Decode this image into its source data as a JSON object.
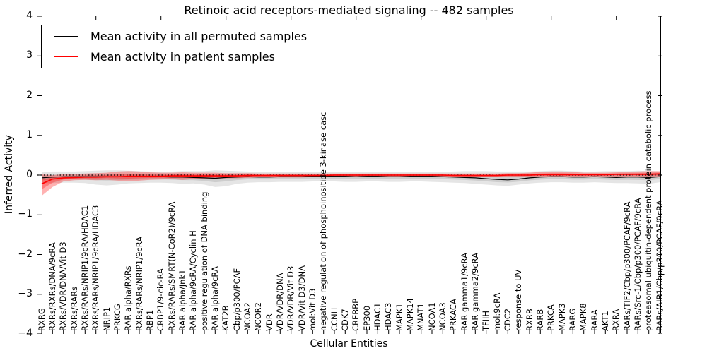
{
  "title": "Retinoic acid receptors-mediated signaling -- 482 samples",
  "chart_data": {
    "type": "line",
    "title": "Retinoic acid receptors-mediated signaling -- 482 samples",
    "xlabel": "Cellular Entities",
    "ylabel": "Inferred Activity",
    "ylim": [
      -4,
      4
    ],
    "yticks": [
      4,
      3,
      2,
      1,
      0,
      -1,
      -2,
      -3,
      -4
    ],
    "zero_line": true,
    "grid": false,
    "legend_position": "upper left",
    "categories": [
      "RXRG",
      "RXRs/RXRs/DNA/9cRA",
      "RXRs/VDR/DNA/Vit D3",
      "RXRs/RARs",
      "RXRs/RARs/NRIP1/9cRA/HDAC1",
      "RXRs/RARs/NRIP1/9cRA/HDAC3",
      "NRIP1",
      "PRKCG",
      "RAR alpha/RXRs",
      "RXRs/RARs/NRIP1/9cRA",
      "RBP1",
      "CRBP1/9-cic-RA",
      "RXRs/RARs/SMRT(N-CoR2)/9cRA",
      "RAR alpha/Jnk1",
      "RAR alpha/9cRA/Cyclin H",
      "positive regulation of DNA binding",
      "RAR alpha/9cRA",
      "KAT2B",
      "Cbp/p300/PCAF",
      "NCOA2",
      "NCOR2",
      "VDR",
      "VDR/VDR/DNA",
      "VDR/VDR/Vit D3",
      "VDR/Vit D3/DNA",
      "mol:Vit D3",
      "negative regulation of phosphoinositide 3-kinase casc",
      "CCNH",
      "CDK7",
      "CREBBP",
      "EP300",
      "HDAC1",
      "HDAC3",
      "MAPK1",
      "MAPK14",
      "MNAT1",
      "NCOA1",
      "NCOA3",
      "PRKACA",
      "RAR gamma1/9cRA",
      "RAR gamma2/9cRA",
      "TFIIH",
      "mol:9cRA",
      "CDC2",
      "response to UV",
      "RXRB",
      "RARB",
      "PRKCA",
      "MAPK3",
      "RARG",
      "MAPK8",
      "RARA",
      "AKT1",
      "RXRA",
      "RARs/TIF2/Cbp/p300/PCAF/9cRA",
      "RARs/Src-1/Cbp/p300/PCAF/9cRA",
      "proteasomal ubiquitin-dependent protein catabolic process",
      "RARs/AIB1/Cbp/p300/PCAF/9cRA"
    ],
    "series": [
      {
        "name": "Mean activity in all permuted samples",
        "color": "#000000",
        "band_color": "#000000",
        "band_opacity": 0.1,
        "values": [
          -0.07,
          -0.05,
          -0.04,
          -0.04,
          -0.04,
          -0.04,
          -0.04,
          -0.04,
          -0.04,
          -0.04,
          -0.04,
          -0.04,
          -0.05,
          -0.05,
          -0.06,
          -0.07,
          -0.08,
          -0.06,
          -0.05,
          -0.04,
          -0.05,
          -0.05,
          -0.04,
          -0.04,
          -0.04,
          -0.03,
          -0.03,
          -0.03,
          -0.03,
          -0.04,
          -0.03,
          -0.03,
          -0.04,
          -0.04,
          -0.03,
          -0.03,
          -0.03,
          -0.04,
          -0.05,
          -0.06,
          -0.07,
          -0.09,
          -0.11,
          -0.12,
          -0.1,
          -0.07,
          -0.05,
          -0.04,
          -0.04,
          -0.05,
          -0.05,
          -0.04,
          -0.05,
          -0.06,
          -0.05,
          -0.05,
          -0.06,
          -0.04
        ],
        "band_upper": [
          0.08,
          0.09,
          0.09,
          0.09,
          0.1,
          0.11,
          0.12,
          0.12,
          0.11,
          0.1,
          0.09,
          0.09,
          0.09,
          0.1,
          0.1,
          0.1,
          0.12,
          0.11,
          0.1,
          0.09,
          0.08,
          0.08,
          0.08,
          0.08,
          0.08,
          0.08,
          0.08,
          0.08,
          0.08,
          0.08,
          0.08,
          0.08,
          0.08,
          0.08,
          0.08,
          0.08,
          0.08,
          0.08,
          0.09,
          0.1,
          0.1,
          0.1,
          0.09,
          0.09,
          0.09,
          0.09,
          0.1,
          0.11,
          0.11,
          0.1,
          0.09,
          0.09,
          0.1,
          0.1,
          0.1,
          0.11,
          0.1,
          0.09
        ],
        "band_lower": [
          -0.2,
          -0.2,
          -0.19,
          -0.19,
          -0.2,
          -0.24,
          -0.26,
          -0.24,
          -0.21,
          -0.2,
          -0.19,
          -0.19,
          -0.2,
          -0.22,
          -0.21,
          -0.24,
          -0.3,
          -0.28,
          -0.22,
          -0.19,
          -0.18,
          -0.18,
          -0.17,
          -0.17,
          -0.17,
          -0.16,
          -0.16,
          -0.16,
          -0.17,
          -0.17,
          -0.16,
          -0.16,
          -0.17,
          -0.17,
          -0.16,
          -0.16,
          -0.17,
          -0.18,
          -0.19,
          -0.2,
          -0.22,
          -0.24,
          -0.26,
          -0.27,
          -0.24,
          -0.21,
          -0.19,
          -0.18,
          -0.18,
          -0.19,
          -0.19,
          -0.18,
          -0.19,
          -0.2,
          -0.2,
          -0.21,
          -0.22,
          -0.18
        ]
      },
      {
        "name": "Mean activity in patient samples",
        "color": "#ff0000",
        "band_color": "#ff0000",
        "band_opacity": 0.3,
        "values": [
          -0.22,
          -0.1,
          -0.07,
          -0.06,
          -0.05,
          -0.05,
          -0.04,
          -0.04,
          -0.03,
          -0.03,
          -0.03,
          -0.03,
          -0.02,
          -0.02,
          -0.02,
          -0.02,
          -0.02,
          -0.02,
          -0.02,
          -0.01,
          -0.01,
          -0.01,
          -0.01,
          -0.01,
          -0.01,
          -0.01,
          -0.01,
          0.0,
          0.0,
          0.0,
          0.0,
          0.0,
          0.0,
          0.0,
          0.0,
          0.0,
          0.0,
          0.0,
          -0.01,
          -0.01,
          -0.01,
          -0.01,
          -0.01,
          0.0,
          0.0,
          0.0,
          0.01,
          0.01,
          0.01,
          0.01,
          0.01,
          0.01,
          0.01,
          0.02,
          0.02,
          0.02,
          0.02,
          0.03
        ],
        "band_upper": [
          0.02,
          0.0,
          0.02,
          0.03,
          0.04,
          0.05,
          0.06,
          0.09,
          0.1,
          0.09,
          0.07,
          0.06,
          0.06,
          0.07,
          0.06,
          0.06,
          0.06,
          0.05,
          0.05,
          0.05,
          0.04,
          0.04,
          0.04,
          0.04,
          0.04,
          0.04,
          0.04,
          0.04,
          0.04,
          0.04,
          0.04,
          0.04,
          0.04,
          0.04,
          0.04,
          0.04,
          0.04,
          0.04,
          0.04,
          0.04,
          0.04,
          0.04,
          0.04,
          0.05,
          0.05,
          0.06,
          0.08,
          0.09,
          0.09,
          0.08,
          0.06,
          0.06,
          0.06,
          0.07,
          0.08,
          0.09,
          0.1,
          0.1
        ],
        "band_lower": [
          -0.52,
          -0.3,
          -0.16,
          -0.13,
          -0.12,
          -0.13,
          -0.12,
          -0.14,
          -0.16,
          -0.14,
          -0.12,
          -0.11,
          -0.1,
          -0.12,
          -0.1,
          -0.09,
          -0.09,
          -0.08,
          -0.08,
          -0.07,
          -0.06,
          -0.06,
          -0.06,
          -0.06,
          -0.06,
          -0.05,
          -0.05,
          -0.05,
          -0.05,
          -0.05,
          -0.05,
          -0.05,
          -0.05,
          -0.05,
          -0.05,
          -0.05,
          -0.05,
          -0.05,
          -0.05,
          -0.05,
          -0.05,
          -0.05,
          -0.05,
          -0.05,
          -0.05,
          -0.04,
          -0.04,
          -0.04,
          -0.04,
          -0.04,
          -0.04,
          -0.04,
          -0.04,
          -0.04,
          -0.04,
          -0.04,
          -0.05,
          -0.05
        ]
      }
    ]
  }
}
